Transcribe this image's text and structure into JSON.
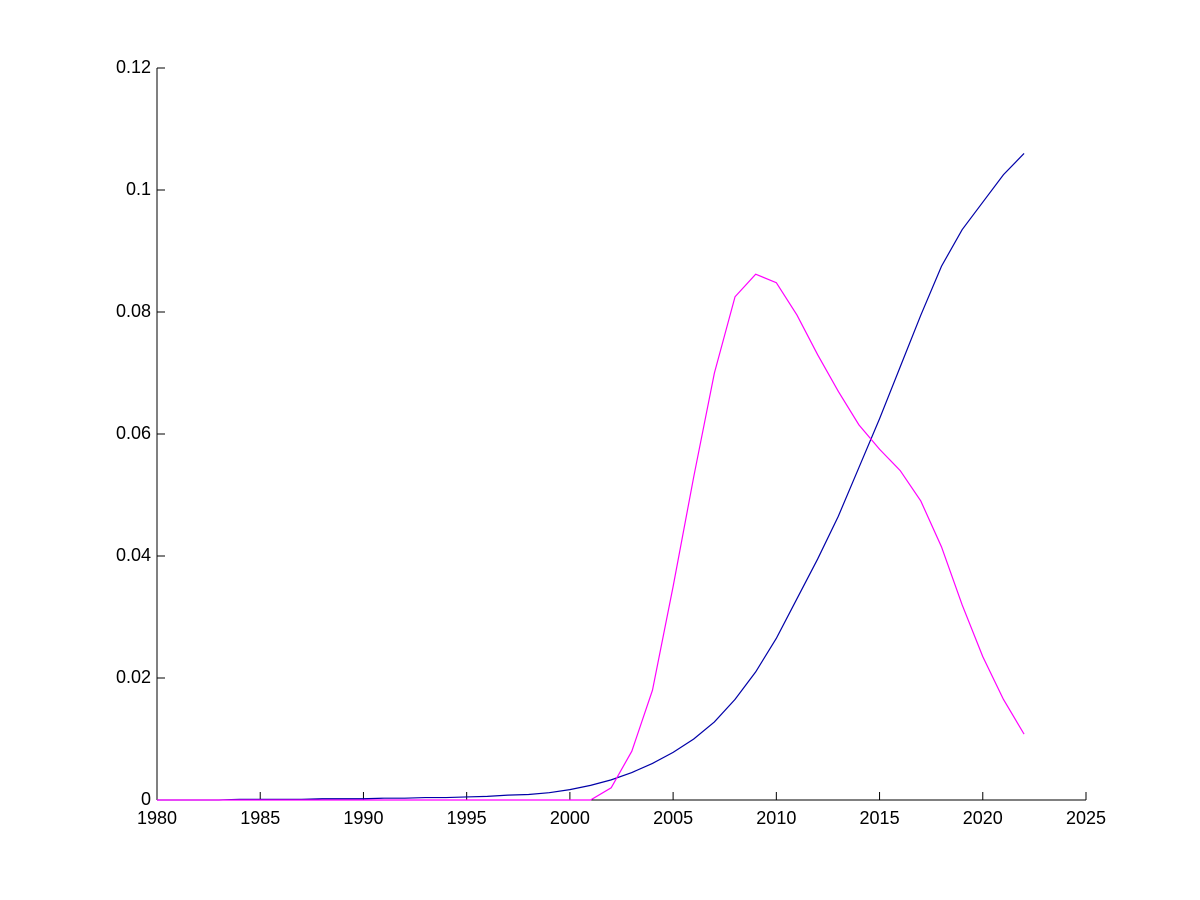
{
  "chart_data": {
    "type": "line",
    "x": [
      1980,
      1981,
      1982,
      1983,
      1984,
      1985,
      1986,
      1987,
      1988,
      1989,
      1990,
      1991,
      1992,
      1993,
      1994,
      1995,
      1996,
      1997,
      1998,
      1999,
      2000,
      2001,
      2002,
      2003,
      2004,
      2005,
      2006,
      2007,
      2008,
      2009,
      2010,
      2011,
      2012,
      2013,
      2014,
      2015,
      2016,
      2017,
      2018,
      2019,
      2020,
      2021,
      2022
    ],
    "series": [
      {
        "color": "#0000a8",
        "values": [
          0,
          0,
          0,
          0,
          0.0001,
          0.0001,
          0.0001,
          0.0001,
          0.0002,
          0.0002,
          0.0002,
          0.0003,
          0.0003,
          0.0004,
          0.0004,
          0.0005,
          0.0006,
          0.0008,
          0.0009,
          0.0012,
          0.0017,
          0.0024,
          0.0033,
          0.0045,
          0.006,
          0.0078,
          0.01,
          0.0128,
          0.0165,
          0.021,
          0.0265,
          0.033,
          0.0395,
          0.0465,
          0.0545,
          0.0625,
          0.071,
          0.0795,
          0.0875,
          0.0935,
          0.098,
          0.1025,
          0.106
        ]
      },
      {
        "color": "#ff00ff",
        "values": [
          0,
          0,
          0,
          0,
          0,
          0,
          0,
          0,
          0,
          0,
          0,
          0,
          0,
          0,
          0,
          0,
          0,
          0,
          0,
          0,
          0,
          0,
          0.002,
          0.008,
          0.018,
          0.035,
          0.053,
          0.07,
          0.0825,
          0.0862,
          0.0848,
          0.0795,
          0.073,
          0.067,
          0.0615,
          0.0575,
          0.054,
          0.049,
          0.0415,
          0.032,
          0.0235,
          0.0165,
          0.0108
        ]
      }
    ],
    "xlim": [
      1980,
      2025
    ],
    "xticks": [
      1980,
      1985,
      1990,
      1995,
      2000,
      2005,
      2010,
      2015,
      2020,
      2025
    ],
    "ylim": [
      0,
      0.12
    ],
    "yticks": [
      0,
      0.02,
      0.04,
      0.06,
      0.08,
      0.1,
      0.12
    ]
  }
}
